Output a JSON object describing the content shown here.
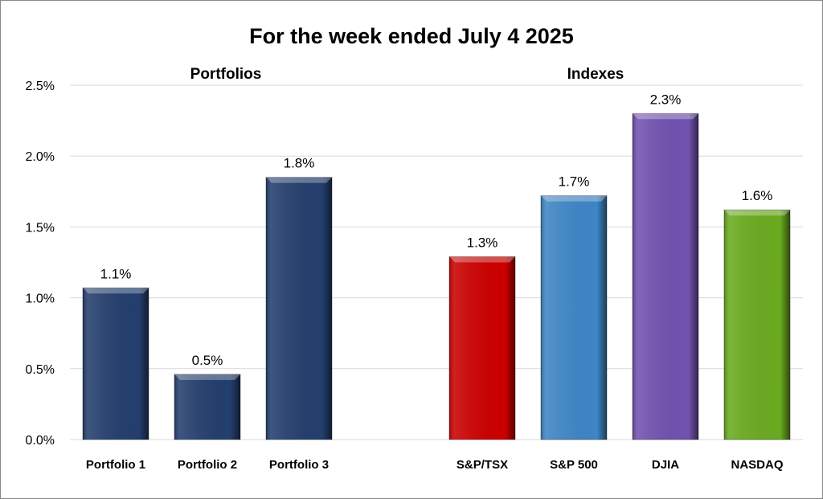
{
  "chart_data": {
    "type": "bar",
    "title": "For the week ended July 4 2025",
    "groups": [
      {
        "label": "Portfolios",
        "categories": [
          "Portfolio 1",
          "Portfolio 2",
          "Portfolio 3"
        ]
      },
      {
        "label": "Indexes",
        "categories": [
          "S&P/TSX",
          "S&P 500",
          "DJIA",
          "NASDAQ"
        ]
      }
    ],
    "categories": [
      "Portfolio 1",
      "Portfolio 2",
      "Portfolio 3",
      "",
      "S&P/TSX",
      "S&P 500",
      "DJIA",
      "NASDAQ"
    ],
    "values": [
      1.07,
      0.46,
      1.85,
      null,
      1.29,
      1.72,
      2.3,
      1.62
    ],
    "data_labels": [
      "1.1%",
      "0.5%",
      "1.8%",
      "",
      "1.3%",
      "1.7%",
      "2.3%",
      "1.6%"
    ],
    "colors": [
      "#243F6E",
      "#243F6E",
      "#243F6E",
      "",
      "#CC0000",
      "#3E86C6",
      "#7152B0",
      "#6AAB1F"
    ],
    "ylim": [
      0,
      2.5
    ],
    "yticks": [
      "0.0%",
      "0.5%",
      "1.0%",
      "1.5%",
      "2.0%",
      "2.5%"
    ],
    "ytick_values": [
      0,
      0.5,
      1.0,
      1.5,
      2.0,
      2.5
    ],
    "grid": true,
    "xlabel": "",
    "ylabel": ""
  }
}
